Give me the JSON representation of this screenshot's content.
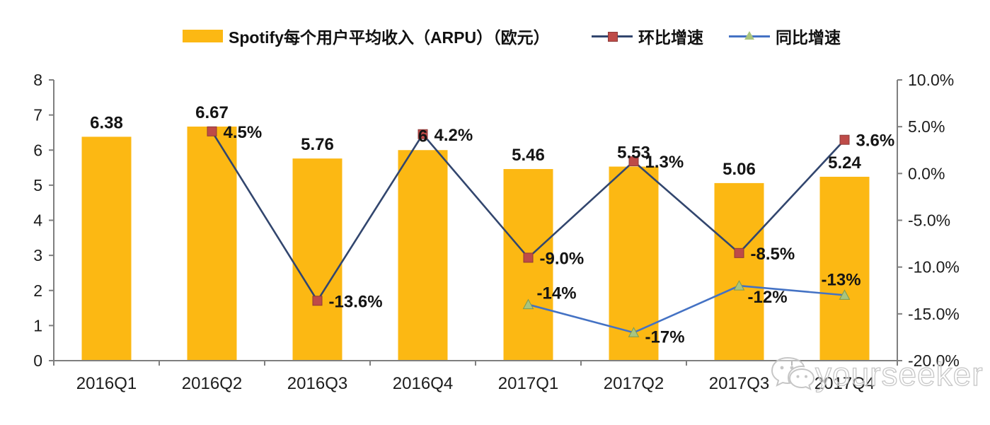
{
  "page": {
    "background": "#ffffff"
  },
  "watermark": {
    "text": "yourseeker",
    "icon": "wechat-chat-bubbles",
    "color": "#c6c6c6"
  },
  "chart_data": {
    "type": "bar",
    "title": "",
    "categories": [
      "2016Q1",
      "2016Q2",
      "2016Q3",
      "2016Q4",
      "2017Q1",
      "2017Q2",
      "2017Q3",
      "2017Q4"
    ],
    "series": [
      {
        "name": "Spotify每个用户平均收入（ARPU）（欧元）",
        "type": "bar",
        "axis": "left",
        "color": "#FCB813",
        "values": [
          6.38,
          6.67,
          5.76,
          6,
          5.46,
          5.53,
          5.06,
          5.24
        ],
        "labels": [
          "6.38",
          "6.67",
          "5.76",
          "6",
          "5.46",
          "5.53",
          "5.06",
          "5.24"
        ]
      },
      {
        "name": "环比增速",
        "type": "line",
        "axis": "right",
        "color": "#32466E",
        "marker": "square",
        "marker_color": "#BE4B48",
        "marker_edge": "#8E3A38",
        "values": [
          null,
          4.5,
          -13.6,
          4.2,
          -9.0,
          1.3,
          -8.5,
          3.6
        ],
        "labels": [
          null,
          "4.5%",
          "-13.6%",
          "4.2%",
          "-9.0%",
          "1.3%",
          "-8.5%",
          "3.6%"
        ]
      },
      {
        "name": "同比增速",
        "type": "line",
        "axis": "right",
        "color": "#4472C4",
        "marker": "triangle",
        "marker_color": "#A9C47F",
        "marker_edge": "#7C9A53",
        "values": [
          null,
          null,
          null,
          null,
          -14,
          -17,
          -12,
          -13
        ],
        "labels": [
          null,
          null,
          null,
          null,
          "-14%",
          "-17%",
          "-12%",
          "-13%"
        ]
      }
    ],
    "left_axis": {
      "min": 0,
      "max": 8,
      "ticks": [
        "0",
        "1",
        "2",
        "3",
        "4",
        "5",
        "6",
        "7",
        "8"
      ]
    },
    "right_axis": {
      "min": -20,
      "max": 10,
      "ticks": [
        "10.0%",
        "5.0%",
        "0.0%",
        "-5.0%",
        "-10.0%",
        "-15.0%",
        "-20.0%"
      ]
    },
    "grid": false,
    "legend_position": "top",
    "axis_color": "#7f7f7f",
    "text_color": "#1c1c1c"
  }
}
